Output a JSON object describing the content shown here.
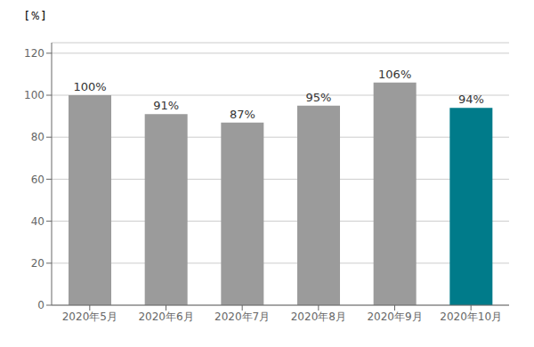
{
  "chart_data": {
    "type": "bar",
    "categories": [
      "2020年5月",
      "2020年6月",
      "2020年7月",
      "2020年8月",
      "2020年9月",
      "2020年10月"
    ],
    "values": [
      100,
      91,
      87,
      95,
      106,
      94
    ],
    "value_labels": [
      "100%",
      "91%",
      "87%",
      "95%",
      "106%",
      "94%"
    ],
    "colors": [
      "#9b9b9b",
      "#9b9b9b",
      "#9b9b9b",
      "#9b9b9b",
      "#9b9b9b",
      "#007B8A"
    ],
    "ylabel": "[％]",
    "ylim": [
      0,
      125
    ],
    "yticks": [
      0,
      20,
      40,
      60,
      80,
      100,
      120
    ],
    "grid": true,
    "data_labels": true
  }
}
